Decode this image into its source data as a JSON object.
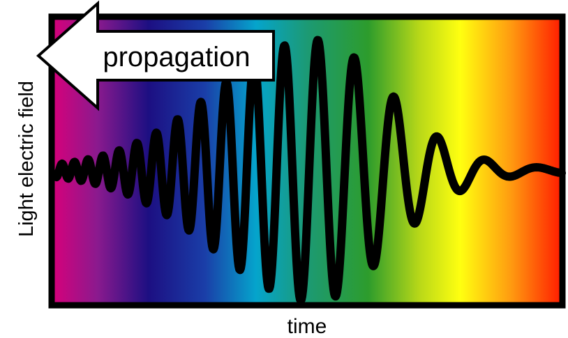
{
  "labels": {
    "arrow": "propagation",
    "y_axis": "Light electric field",
    "x_axis": "time"
  }
}
